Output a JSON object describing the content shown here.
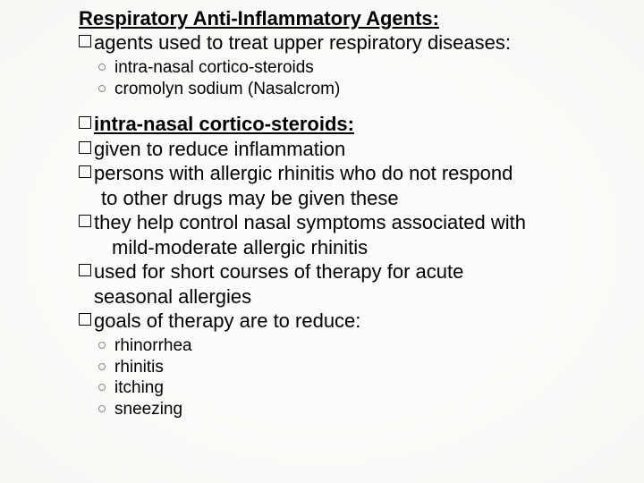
{
  "colors": {
    "bg": "#fdfcfa",
    "text": "#000000",
    "ring": "#888888"
  },
  "fonts": {
    "main_size": 22,
    "sub_size": 19,
    "family": "Arial"
  },
  "title": "Respiratory Anti-Inflammatory Agents:",
  "b_agents": "agents used to treat upper respiratory diseases:",
  "sub1a": "intra-nasal cortico-steroids",
  "sub1b": "cromolyn sodium (Nasalcrom)",
  "b_intra": "intra-nasal cortico-steroids:",
  "b_given": "given to reduce inflammation",
  "b_persons_l1": "persons with allergic rhinitis who do not respond",
  "b_persons_l2": "to   other drugs may be given these",
  "b_they_l1": "they help control nasal symptoms associated with",
  "b_they_l2": "mild-moderate allergic rhinitis",
  "b_used_l1": "used for short courses of therapy for acute",
  "b_used_l2": "seasonal           allergies",
  "b_goals": "goals of therapy are to reduce:",
  "g1": "rhinorrhea",
  "g2": "rhinitis",
  "g3": "itching",
  "g4": "sneezing"
}
